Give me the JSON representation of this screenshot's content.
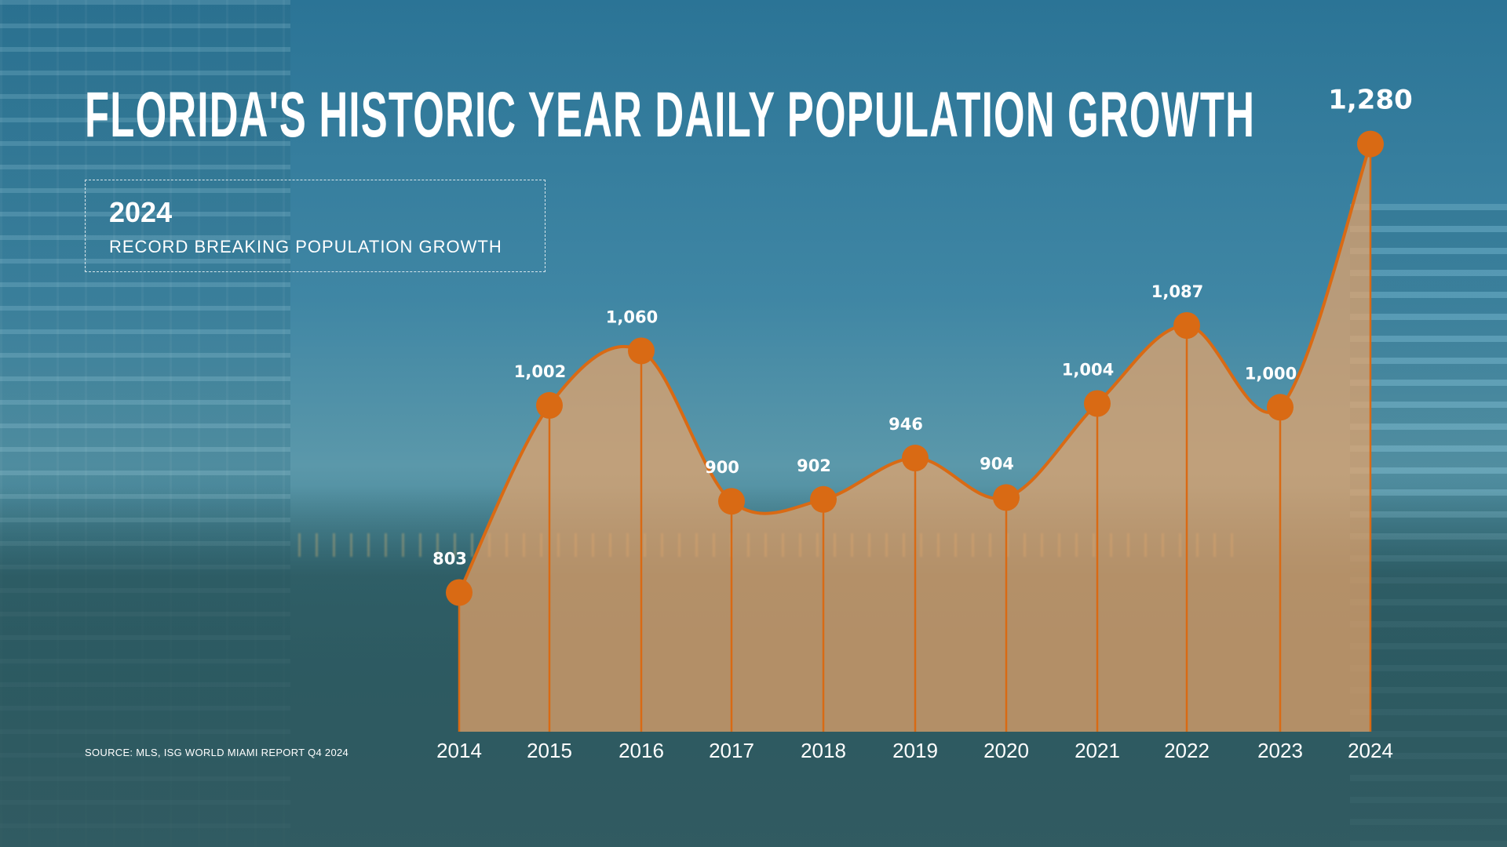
{
  "header": {
    "title": "FLORIDA'S HISTORIC YEAR DAILY POPULATION GROWTH"
  },
  "callout": {
    "year": "2024",
    "text": "RECORD BREAKING POPULATION GROWTH"
  },
  "source": "SOURCE: MLS, ISG WORLD MIAMI REPORT Q4 2024",
  "colors": {
    "accent": "#d96a14",
    "fill": "#e8a36a",
    "background": "#2f7899"
  },
  "chart_data": {
    "type": "area",
    "title": "FLORIDA'S HISTORIC YEAR DAILY POPULATION GROWTH",
    "categories": [
      "2014",
      "2015",
      "2016",
      "2017",
      "2018",
      "2019",
      "2020",
      "2021",
      "2022",
      "2023",
      "2024"
    ],
    "values": [
      803,
      1002,
      1060,
      900,
      902,
      946,
      904,
      1004,
      1087,
      1000,
      1280
    ],
    "labels": [
      "803",
      "1,002",
      "1,060",
      "900",
      "902",
      "946",
      "904",
      "1,004",
      "1,087",
      "1,000",
      "1,280"
    ],
    "smooth": true,
    "grid": false,
    "legend": "none",
    "xlabel": "",
    "ylabel": ""
  }
}
